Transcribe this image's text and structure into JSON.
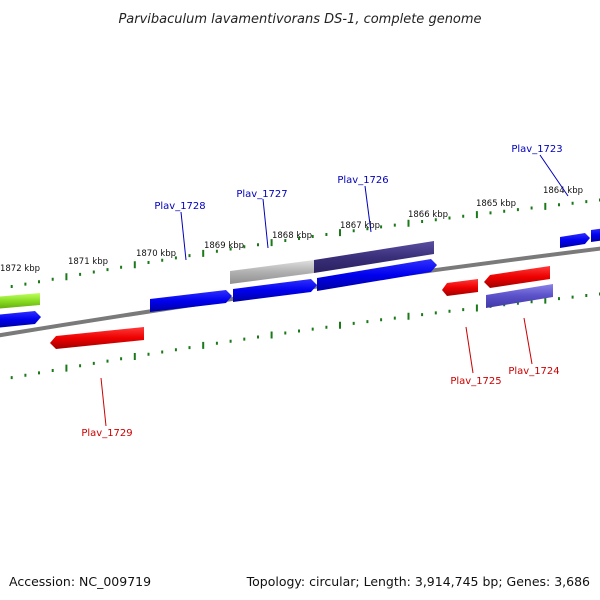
{
  "title": "Parvibaculum lavamentivorans DS-1, complete genome",
  "footer": {
    "accession": "Accession: NC_009719",
    "summary": "Topology: circular; Length: 3,914,745 bp; Genes: 3,686"
  },
  "scale_labels": [
    "1872 kbp",
    "1871 kbp",
    "1870 kbp",
    "1869 kbp",
    "1868 kbp",
    "1867 kbp",
    "1866 kbp",
    "1865 kbp",
    "1864 kbp"
  ],
  "gene_labels": {
    "plav_1723": "Plav_1723",
    "plav_1724": "Plav_1724",
    "plav_1725": "Plav_1725",
    "plav_1726": "Plav_1726",
    "plav_1727": "Plav_1727",
    "plav_1728": "Plav_1728",
    "plav_1729": "Plav_1729"
  },
  "colors": {
    "forward_gene": "#0000ee",
    "reverse_gene": "#ee0000",
    "highlight_gene": "#3a2f7a",
    "reverse_highlight": "#5a50c8",
    "rna_gene": "#88dd22",
    "pseudo_gene": "#a8a8a8",
    "backbone": "#808080",
    "tick": "#1a7a1a",
    "forward_label": "#0000bb",
    "reverse_label": "#cc0000"
  }
}
